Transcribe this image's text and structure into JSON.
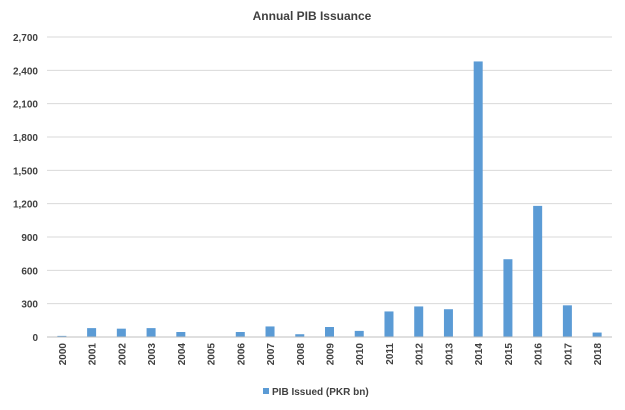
{
  "chart_data": {
    "type": "bar",
    "title": "Annual PIB Issuance",
    "xlabel": "",
    "ylabel": "",
    "categories": [
      "2000",
      "2001",
      "2002",
      "2003",
      "2004",
      "2005",
      "2006",
      "2007",
      "2008",
      "2009",
      "2010",
      "2011",
      "2012",
      "2013",
      "2014",
      "2015",
      "2016",
      "2017",
      "2018"
    ],
    "series": [
      {
        "name": "PIB Issued (PKR bn)",
        "values": [
          10,
          80,
          75,
          80,
          45,
          0,
          45,
          95,
          25,
          90,
          55,
          230,
          275,
          250,
          2480,
          700,
          1180,
          285,
          40
        ],
        "color": "#5B9BD5"
      }
    ],
    "ylim": [
      0,
      2700
    ],
    "yticks": [
      0,
      300,
      600,
      900,
      1200,
      1500,
      1800,
      2100,
      2400,
      2700
    ],
    "ytick_labels": [
      "0",
      "300",
      "600",
      "900",
      "1,200",
      "1,500",
      "1,800",
      "2,100",
      "2,400",
      "2,700"
    ],
    "grid": true,
    "legend_position": "bottom",
    "gridline_color": "#D9D9D9",
    "axis_color": "#BFBFBF"
  }
}
